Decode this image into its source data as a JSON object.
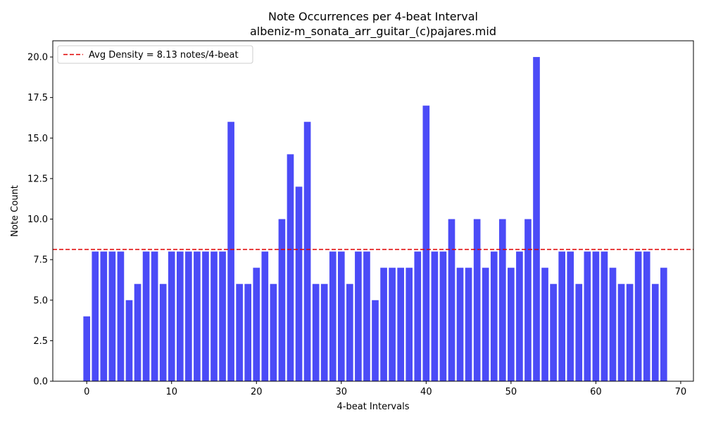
{
  "chart_data": {
    "type": "bar",
    "title": "Note Occurrences per 4-beat Interval",
    "subtitle": "albeniz-m_sonata_arr_guitar_(c)pajares.mid",
    "xlabel": "4-beat Intervals",
    "ylabel": "Note Count",
    "xlim": [
      -4,
      71.5
    ],
    "ylim": [
      0,
      21
    ],
    "xticks": [
      0,
      10,
      20,
      30,
      40,
      50,
      60,
      70
    ],
    "yticks": [
      0,
      2.5,
      5,
      7.5,
      10,
      12.5,
      15,
      17.5,
      20
    ],
    "x": [
      0,
      1,
      2,
      3,
      4,
      5,
      6,
      7,
      8,
      9,
      10,
      11,
      12,
      13,
      14,
      15,
      16,
      17,
      18,
      19,
      20,
      21,
      22,
      23,
      24,
      25,
      26,
      27,
      28,
      29,
      30,
      31,
      32,
      33,
      34,
      35,
      36,
      37,
      38,
      39,
      40,
      41,
      42,
      43,
      44,
      45,
      46,
      47,
      48,
      49,
      50,
      51,
      52,
      53,
      54,
      55,
      56,
      57,
      58,
      59,
      60,
      61,
      62,
      63,
      64,
      65,
      66,
      67,
      68
    ],
    "values": [
      4,
      8,
      8,
      8,
      8,
      5,
      6,
      8,
      8,
      6,
      8,
      8,
      8,
      8,
      8,
      8,
      8,
      16,
      6,
      6,
      7,
      8,
      6,
      10,
      14,
      12,
      16,
      6,
      6,
      8,
      8,
      6,
      8,
      8,
      5,
      7,
      7,
      7,
      7,
      8,
      17,
      8,
      8,
      10,
      7,
      7,
      10,
      7,
      8,
      10,
      7,
      8,
      10,
      20,
      7,
      6,
      8,
      8,
      6,
      8,
      8,
      8,
      7,
      6,
      6,
      8,
      8,
      6,
      7
    ],
    "bar_color": "#4b4bf7",
    "reference_line": {
      "value": 8.13,
      "label": "Avg Density = 8.13 notes/4-beat",
      "color": "#e00000",
      "style": "dashed"
    },
    "legend_position": "top-left",
    "grid": false
  }
}
